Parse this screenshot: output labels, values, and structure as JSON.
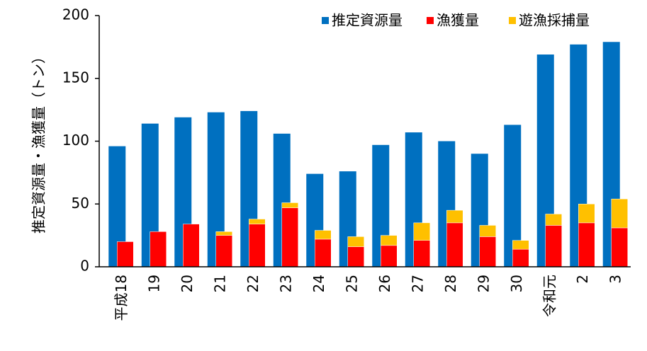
{
  "chart_data": {
    "type": "bar",
    "y_label": "推定資源量・漁獲量（トン）",
    "categories": [
      "平成18",
      "19",
      "20",
      "21",
      "22",
      "23",
      "24",
      "25",
      "26",
      "27",
      "28",
      "29",
      "30",
      "令和元",
      "2",
      "3"
    ],
    "series": [
      {
        "name": "推定資源量",
        "color": "#0070c0",
        "values": [
          96,
          114,
          119,
          123,
          124,
          106,
          74,
          76,
          97,
          107,
          100,
          90,
          113,
          169,
          177,
          179
        ]
      },
      {
        "name": "漁獲量",
        "color": "#ff0000",
        "values": [
          20,
          28,
          34,
          25,
          34,
          47,
          22,
          16,
          17,
          21,
          35,
          24,
          14,
          33,
          35,
          31
        ]
      },
      {
        "name": "遊漁採捕量",
        "color": "#ffc000",
        "values": [
          0,
          0,
          0,
          3,
          4,
          4,
          7,
          8,
          8,
          14,
          10,
          9,
          7,
          9,
          15,
          23
        ]
      }
    ],
    "ylim": [
      0,
      200
    ],
    "yticks": [
      0,
      50,
      100,
      150,
      200
    ],
    "grid": false,
    "legend": "top-right"
  }
}
